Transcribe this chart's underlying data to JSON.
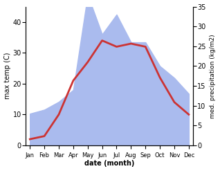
{
  "months": [
    "Jan",
    "Feb",
    "Mar",
    "Apr",
    "May",
    "Jun",
    "Jul",
    "Aug",
    "Sep",
    "Oct",
    "Nov",
    "Dec"
  ],
  "temperature": [
    2,
    3,
    10,
    21,
    27,
    34,
    32,
    33,
    32,
    22,
    14,
    10
  ],
  "precipitation": [
    8,
    9,
    11,
    14,
    38,
    28,
    33,
    26,
    26,
    20,
    17,
    13
  ],
  "temp_color": "#cc3333",
  "precip_color_fill": "#aabbee",
  "ylabel_left": "max temp (C)",
  "ylabel_right": "med. precipitation (kg/m2)",
  "xlabel": "date (month)",
  "ylim_left": [
    0,
    45
  ],
  "ylim_right": [
    0,
    35
  ],
  "yticks_left": [
    0,
    10,
    20,
    30,
    40
  ],
  "yticks_right": [
    0,
    5,
    10,
    15,
    20,
    25,
    30,
    35
  ],
  "line_width": 2.0,
  "background_color": "#ffffff"
}
